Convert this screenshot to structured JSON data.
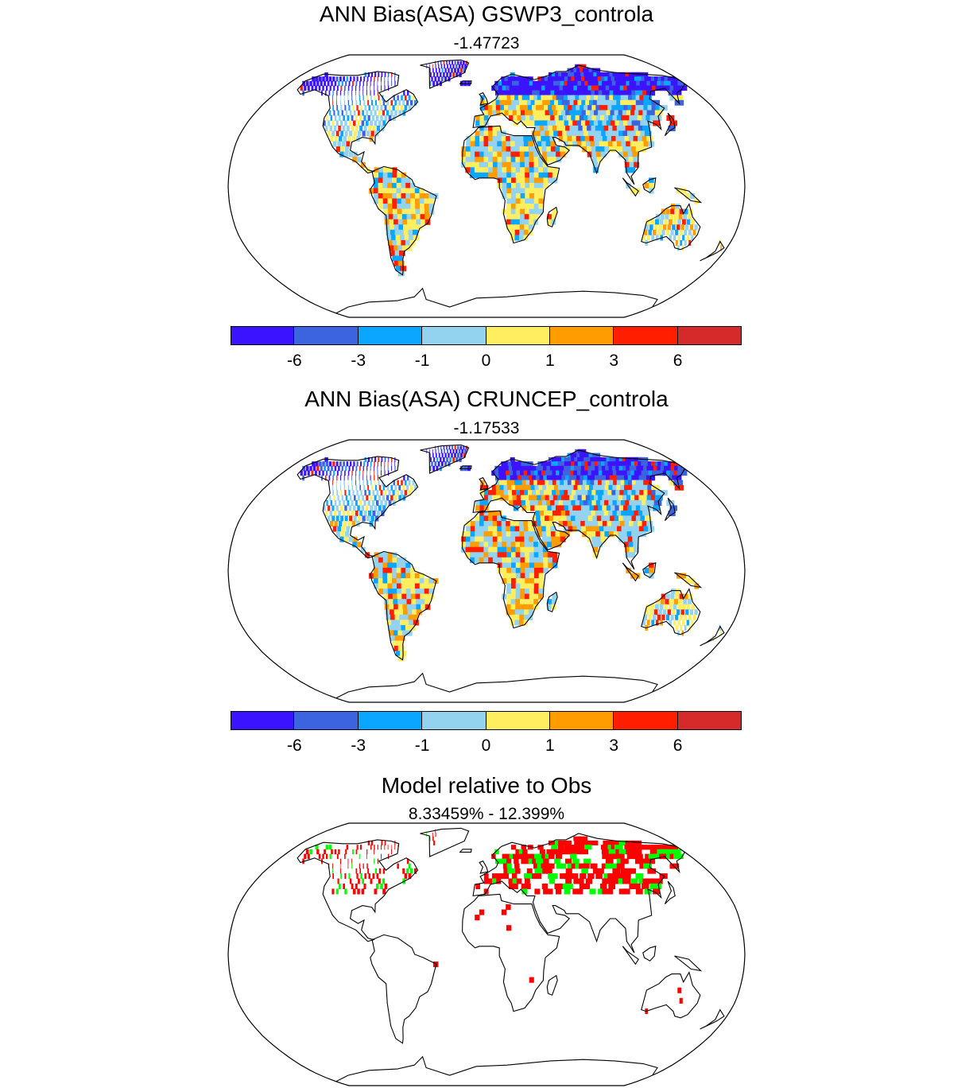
{
  "panels": [
    {
      "title": "ANN Bias(ASA) GSWP3_controla",
      "subtitle": "-1.47723",
      "kind": "bias"
    },
    {
      "title": "ANN Bias(ASA) CRUNCEP_controla",
      "subtitle": "-1.17533",
      "kind": "bias"
    },
    {
      "title": "Model relative to Obs",
      "subtitle": "8.33459% - 12.399%",
      "kind": "relative",
      "colors": [
        "#ff0000",
        "#00ff00"
      ]
    }
  ],
  "colorbar": {
    "colors": [
      "#3b13ff",
      "#3c64e0",
      "#0aa6ff",
      "#94d3f0",
      "#ffef60",
      "#ff9c00",
      "#ff1e00",
      "#d42a29"
    ],
    "labels": [
      "-6",
      "-3",
      "-1",
      "0",
      "1",
      "3",
      "6"
    ]
  },
  "projection": "robinson"
}
